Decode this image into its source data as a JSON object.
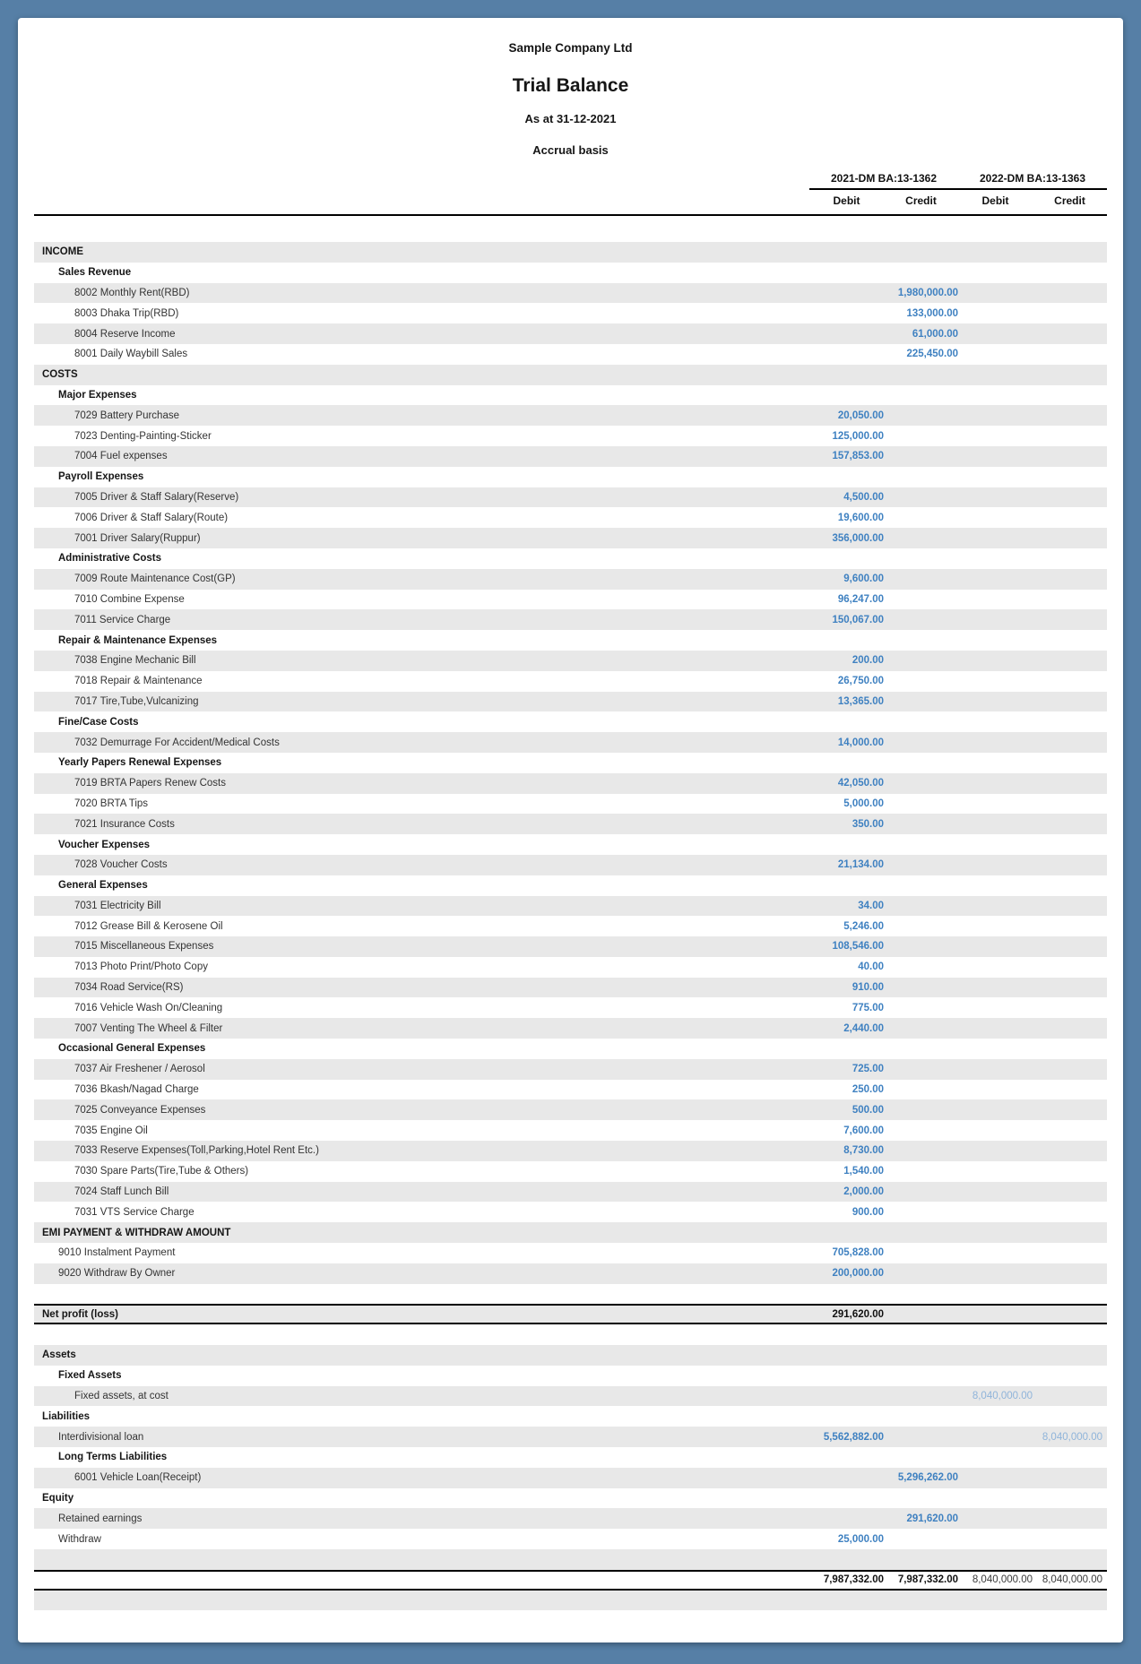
{
  "report": {
    "company": "Sample Company Ltd",
    "title": "Trial Balance",
    "as_at": "As at 31-12-2021",
    "basis": "Accrual basis"
  },
  "columns": {
    "groups": [
      "2021-DM BA:13-1362",
      "2022-DM BA:13-1363"
    ],
    "sub": [
      "Debit",
      "Credit",
      "Debit",
      "Credit"
    ]
  },
  "colors": {
    "page_background": "#567fa6",
    "row_stripe": "#e8e8e8",
    "value_2021_blue": "#3f81c1",
    "value_2022_light_blue": "#8fb4da",
    "border_black": "#000000"
  },
  "rows": [
    {
      "label": "INCOME",
      "indent": 0,
      "bold": true,
      "values": [
        "",
        "",
        "",
        ""
      ]
    },
    {
      "label": "Sales Revenue",
      "indent": 1,
      "bold": true,
      "values": [
        "",
        "",
        "",
        ""
      ]
    },
    {
      "label": "8002 Monthly Rent(RBD)",
      "indent": 2,
      "bold": false,
      "values": [
        "",
        "1,980,000.00",
        "",
        ""
      ]
    },
    {
      "label": "8003 Dhaka Trip(RBD)",
      "indent": 2,
      "bold": false,
      "values": [
        "",
        "133,000.00",
        "",
        ""
      ]
    },
    {
      "label": "8004 Reserve Income",
      "indent": 2,
      "bold": false,
      "values": [
        "",
        "61,000.00",
        "",
        ""
      ]
    },
    {
      "label": "8001 Daily Waybill Sales",
      "indent": 2,
      "bold": false,
      "values": [
        "",
        "225,450.00",
        "",
        ""
      ]
    },
    {
      "label": "COSTS",
      "indent": 0,
      "bold": true,
      "values": [
        "",
        "",
        "",
        ""
      ]
    },
    {
      "label": "Major Expenses",
      "indent": 1,
      "bold": true,
      "values": [
        "",
        "",
        "",
        ""
      ]
    },
    {
      "label": "7029 Battery Purchase",
      "indent": 2,
      "bold": false,
      "values": [
        "20,050.00",
        "",
        "",
        ""
      ]
    },
    {
      "label": "7023 Denting-Painting-Sticker",
      "indent": 2,
      "bold": false,
      "values": [
        "125,000.00",
        "",
        "",
        ""
      ]
    },
    {
      "label": "7004 Fuel expenses",
      "indent": 2,
      "bold": false,
      "values": [
        "157,853.00",
        "",
        "",
        ""
      ]
    },
    {
      "label": "Payroll Expenses",
      "indent": 1,
      "bold": true,
      "values": [
        "",
        "",
        "",
        ""
      ]
    },
    {
      "label": "7005 Driver & Staff Salary(Reserve)",
      "indent": 2,
      "bold": false,
      "values": [
        "4,500.00",
        "",
        "",
        ""
      ]
    },
    {
      "label": "7006 Driver & Staff Salary(Route)",
      "indent": 2,
      "bold": false,
      "values": [
        "19,600.00",
        "",
        "",
        ""
      ]
    },
    {
      "label": "7001 Driver Salary(Ruppur)",
      "indent": 2,
      "bold": false,
      "values": [
        "356,000.00",
        "",
        "",
        ""
      ]
    },
    {
      "label": "Administrative Costs",
      "indent": 1,
      "bold": true,
      "values": [
        "",
        "",
        "",
        ""
      ]
    },
    {
      "label": "7009 Route Maintenance Cost(GP)",
      "indent": 2,
      "bold": false,
      "values": [
        "9,600.00",
        "",
        "",
        ""
      ]
    },
    {
      "label": "7010 Combine Expense",
      "indent": 2,
      "bold": false,
      "values": [
        "96,247.00",
        "",
        "",
        ""
      ]
    },
    {
      "label": "7011 Service Charge",
      "indent": 2,
      "bold": false,
      "values": [
        "150,067.00",
        "",
        "",
        ""
      ]
    },
    {
      "label": "Repair & Maintenance Expenses",
      "indent": 1,
      "bold": true,
      "values": [
        "",
        "",
        "",
        ""
      ]
    },
    {
      "label": "7038 Engine Mechanic Bill",
      "indent": 2,
      "bold": false,
      "values": [
        "200.00",
        "",
        "",
        ""
      ]
    },
    {
      "label": "7018 Repair & Maintenance",
      "indent": 2,
      "bold": false,
      "values": [
        "26,750.00",
        "",
        "",
        ""
      ]
    },
    {
      "label": "7017 Tire,Tube,Vulcanizing",
      "indent": 2,
      "bold": false,
      "values": [
        "13,365.00",
        "",
        "",
        ""
      ]
    },
    {
      "label": "Fine/Case Costs",
      "indent": 1,
      "bold": true,
      "values": [
        "",
        "",
        "",
        ""
      ]
    },
    {
      "label": "7032 Demurrage For Accident/Medical Costs",
      "indent": 2,
      "bold": false,
      "values": [
        "14,000.00",
        "",
        "",
        ""
      ]
    },
    {
      "label": "Yearly Papers Renewal Expenses",
      "indent": 1,
      "bold": true,
      "values": [
        "",
        "",
        "",
        ""
      ]
    },
    {
      "label": "7019 BRTA Papers Renew Costs",
      "indent": 2,
      "bold": false,
      "values": [
        "42,050.00",
        "",
        "",
        ""
      ]
    },
    {
      "label": "7020 BRTA Tips",
      "indent": 2,
      "bold": false,
      "values": [
        "5,000.00",
        "",
        "",
        ""
      ]
    },
    {
      "label": "7021 Insurance Costs",
      "indent": 2,
      "bold": false,
      "values": [
        "350.00",
        "",
        "",
        ""
      ]
    },
    {
      "label": "Voucher Expenses",
      "indent": 1,
      "bold": true,
      "values": [
        "",
        "",
        "",
        ""
      ]
    },
    {
      "label": "7028 Voucher Costs",
      "indent": 2,
      "bold": false,
      "values": [
        "21,134.00",
        "",
        "",
        ""
      ]
    },
    {
      "label": "General Expenses",
      "indent": 1,
      "bold": true,
      "values": [
        "",
        "",
        "",
        ""
      ]
    },
    {
      "label": "7031 Electricity Bill",
      "indent": 2,
      "bold": false,
      "values": [
        "34.00",
        "",
        "",
        ""
      ]
    },
    {
      "label": "7012 Grease Bill & Kerosene Oil",
      "indent": 2,
      "bold": false,
      "values": [
        "5,246.00",
        "",
        "",
        ""
      ]
    },
    {
      "label": "7015 Miscellaneous Expenses",
      "indent": 2,
      "bold": false,
      "values": [
        "108,546.00",
        "",
        "",
        ""
      ]
    },
    {
      "label": "7013 Photo Print/Photo Copy",
      "indent": 2,
      "bold": false,
      "values": [
        "40.00",
        "",
        "",
        ""
      ]
    },
    {
      "label": "7034 Road Service(RS)",
      "indent": 2,
      "bold": false,
      "values": [
        "910.00",
        "",
        "",
        ""
      ]
    },
    {
      "label": "7016 Vehicle Wash On/Cleaning",
      "indent": 2,
      "bold": false,
      "values": [
        "775.00",
        "",
        "",
        ""
      ]
    },
    {
      "label": "7007 Venting The Wheel & Filter",
      "indent": 2,
      "bold": false,
      "values": [
        "2,440.00",
        "",
        "",
        ""
      ]
    },
    {
      "label": "Occasional General Expenses",
      "indent": 1,
      "bold": true,
      "values": [
        "",
        "",
        "",
        ""
      ]
    },
    {
      "label": "7037 Air Freshener / Aerosol",
      "indent": 2,
      "bold": false,
      "values": [
        "725.00",
        "",
        "",
        ""
      ]
    },
    {
      "label": "7036 Bkash/Nagad Charge",
      "indent": 2,
      "bold": false,
      "values": [
        "250.00",
        "",
        "",
        ""
      ]
    },
    {
      "label": "7025 Conveyance Expenses",
      "indent": 2,
      "bold": false,
      "values": [
        "500.00",
        "",
        "",
        ""
      ]
    },
    {
      "label": "7035 Engine Oil",
      "indent": 2,
      "bold": false,
      "values": [
        "7,600.00",
        "",
        "",
        ""
      ]
    },
    {
      "label": "7033 Reserve Expenses(Toll,Parking,Hotel Rent Etc.)",
      "indent": 2,
      "bold": false,
      "values": [
        "8,730.00",
        "",
        "",
        ""
      ]
    },
    {
      "label": "7030 Spare Parts(Tire,Tube & Others)",
      "indent": 2,
      "bold": false,
      "values": [
        "1,540.00",
        "",
        "",
        ""
      ]
    },
    {
      "label": "7024 Staff Lunch Bill",
      "indent": 2,
      "bold": false,
      "values": [
        "2,000.00",
        "",
        "",
        ""
      ]
    },
    {
      "label": "7031 VTS Service Charge",
      "indent": 2,
      "bold": false,
      "values": [
        "900.00",
        "",
        "",
        ""
      ]
    },
    {
      "label": "EMI PAYMENT & WITHDRAW AMOUNT",
      "indent": 0,
      "bold": true,
      "values": [
        "",
        "",
        "",
        ""
      ]
    },
    {
      "label": "9010 Instalment Payment",
      "indent": 1,
      "bold": false,
      "values": [
        "705,828.00",
        "",
        "",
        ""
      ]
    },
    {
      "label": "9020 Withdraw By Owner",
      "indent": 1,
      "bold": false,
      "values": [
        "200,000.00",
        "",
        "",
        ""
      ]
    },
    {
      "label": "",
      "indent": 0,
      "bold": false,
      "values": [
        "",
        "",
        "",
        ""
      ],
      "blank": true
    },
    {
      "label": "Net profit (loss)",
      "indent": 0,
      "bold": true,
      "values": [
        "291,620.00",
        "",
        "",
        ""
      ],
      "vstyle": "net",
      "border": "np"
    },
    {
      "label": "",
      "indent": 0,
      "bold": false,
      "values": [
        "",
        "",
        "",
        ""
      ],
      "blank": true
    },
    {
      "label": "Assets",
      "indent": 0,
      "bold": true,
      "values": [
        "",
        "",
        "",
        ""
      ]
    },
    {
      "label": "Fixed Assets",
      "indent": 1,
      "bold": true,
      "values": [
        "",
        "",
        "",
        ""
      ]
    },
    {
      "label": "Fixed assets, at cost",
      "indent": 2,
      "bold": false,
      "values": [
        "",
        "",
        "8,040,000.00",
        ""
      ]
    },
    {
      "label": "Liabilities",
      "indent": 0,
      "bold": true,
      "values": [
        "",
        "",
        "",
        ""
      ]
    },
    {
      "label": "Interdivisional loan",
      "indent": 1,
      "bold": false,
      "values": [
        "5,562,882.00",
        "",
        "",
        "8,040,000.00"
      ]
    },
    {
      "label": "Long Terms Liabilities",
      "indent": 1,
      "bold": true,
      "values": [
        "",
        "",
        "",
        ""
      ]
    },
    {
      "label": "6001 Vehicle Loan(Receipt)",
      "indent": 2,
      "bold": false,
      "values": [
        "",
        "5,296,262.00",
        "",
        ""
      ]
    },
    {
      "label": "Equity",
      "indent": 0,
      "bold": true,
      "values": [
        "",
        "",
        "",
        ""
      ]
    },
    {
      "label": "Retained earnings",
      "indent": 1,
      "bold": false,
      "values": [
        "",
        "291,620.00",
        "",
        ""
      ]
    },
    {
      "label": "Withdraw",
      "indent": 1,
      "bold": false,
      "values": [
        "25,000.00",
        "",
        "",
        ""
      ]
    },
    {
      "label": "",
      "indent": 0,
      "bold": false,
      "values": [
        "",
        "",
        "",
        ""
      ],
      "blank": true
    },
    {
      "label": "",
      "indent": 0,
      "bold": false,
      "values": [
        "7,987,332.00",
        "7,987,332.00",
        "8,040,000.00",
        "8,040,000.00"
      ],
      "vstyle": "total",
      "border": "total"
    },
    {
      "label": "",
      "indent": 0,
      "bold": false,
      "values": [
        "",
        "",
        "",
        ""
      ],
      "blank": true
    }
  ]
}
